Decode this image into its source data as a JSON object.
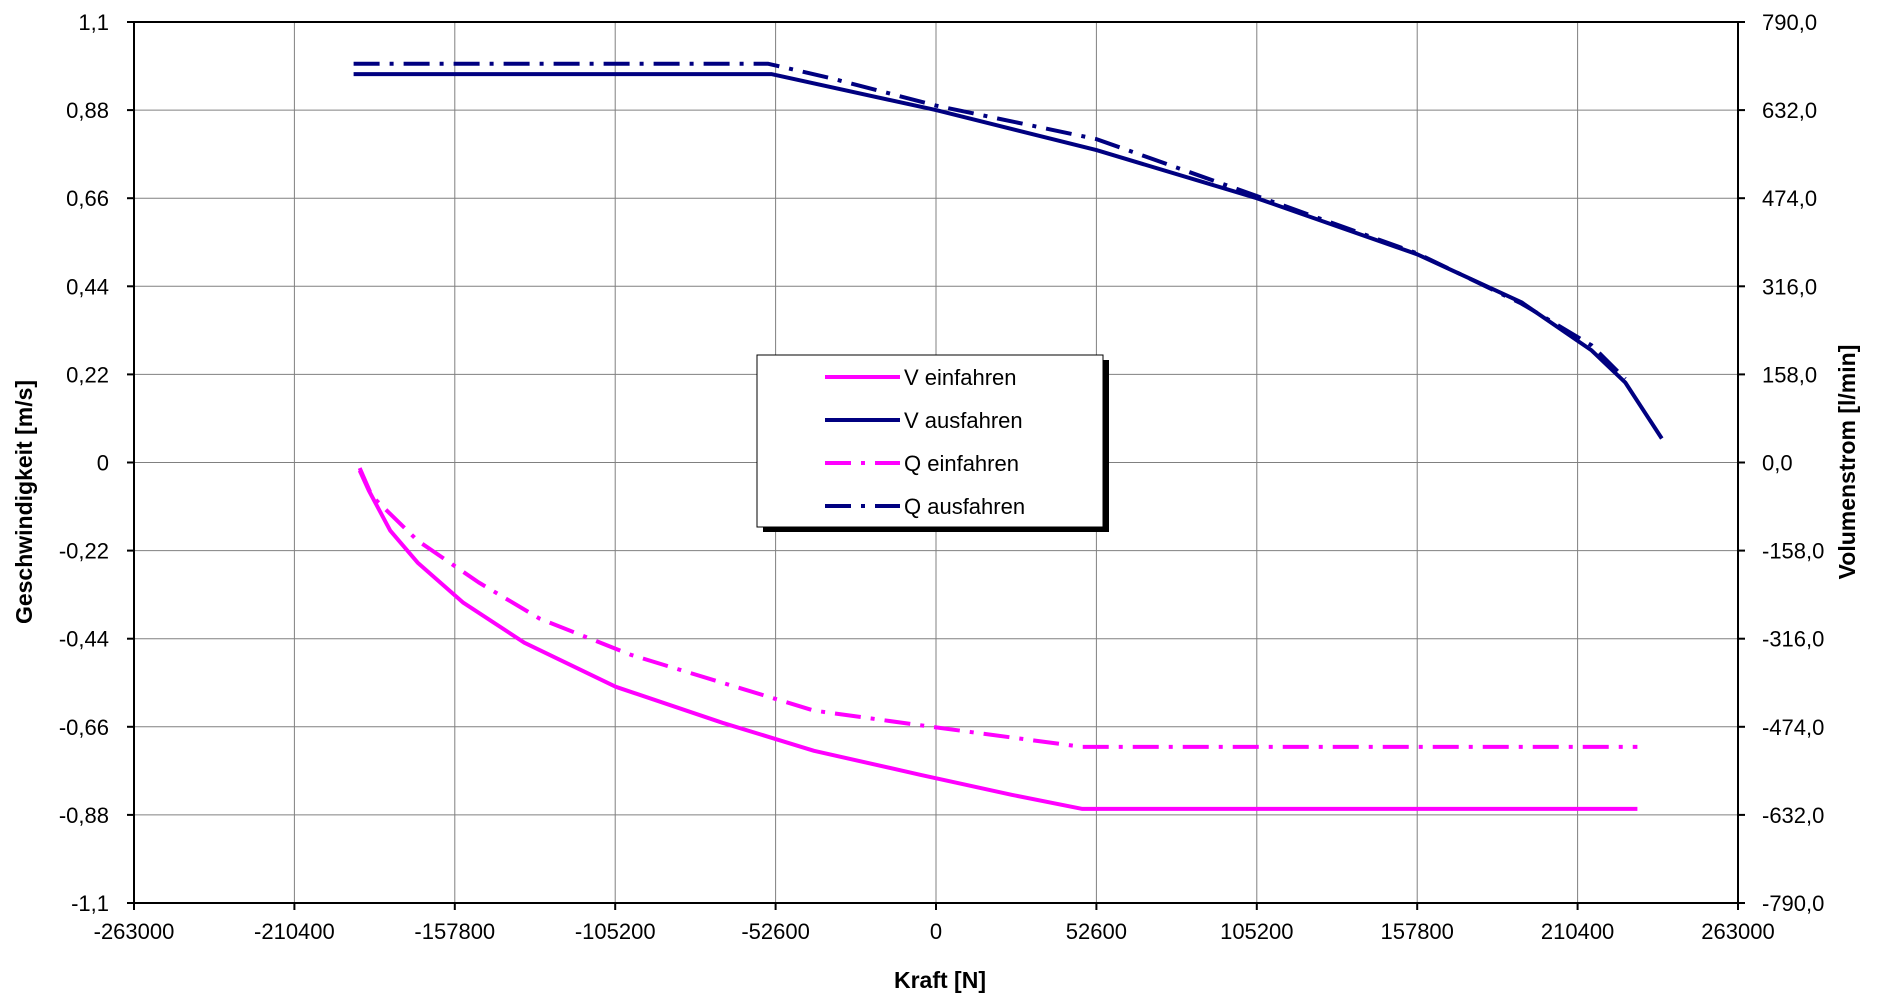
{
  "chart_data": {
    "type": "line",
    "title": "",
    "xlabel": "Kraft [N]",
    "ylabel": "Geschwindigkeit [m/s]",
    "y2label": "Volumenstrom [l/min]",
    "xlim": [
      -263000,
      263000
    ],
    "ylim": [
      -1.1,
      1.1
    ],
    "y2lim": [
      -790.0,
      790.0
    ],
    "x_ticks": [
      "-263000",
      "-210400",
      "-157800",
      "-105200",
      "-52600",
      "0",
      "52600",
      "105200",
      "157800",
      "210400",
      "263000"
    ],
    "y_ticks": [
      "1,1",
      "0,88",
      "0,66",
      "0,44",
      "0,22",
      "0",
      "-0,22",
      "-0,44",
      "-0,66",
      "-0,88",
      "-1,1"
    ],
    "y2_ticks": [
      "790,0",
      "632,0",
      "474,0",
      "316,0",
      "158,0",
      "0,0",
      "-158,0",
      "-316,0",
      "-474,0",
      "-632,0",
      "-790,0"
    ],
    "grid": true,
    "legend_position": "center",
    "series": [
      {
        "name": "V einfahren",
        "axis": "left",
        "color": "#ff00ff",
        "dash": "solid",
        "points": [
          [
            -189000,
            -0.02
          ],
          [
            -186000,
            -0.07
          ],
          [
            -179000,
            -0.17
          ],
          [
            -170000,
            -0.25
          ],
          [
            -155000,
            -0.35
          ],
          [
            -135000,
            -0.45
          ],
          [
            -105000,
            -0.56
          ],
          [
            -70000,
            -0.65
          ],
          [
            -40000,
            -0.72
          ],
          [
            -5000,
            -0.78
          ],
          [
            25000,
            -0.83
          ],
          [
            48000,
            -0.865
          ],
          [
            230000,
            -0.865
          ]
        ]
      },
      {
        "name": "V ausfahren",
        "axis": "left",
        "color": "#000080",
        "dash": "solid",
        "points": [
          [
            -191000,
            0.97
          ],
          [
            -54000,
            0.97
          ],
          [
            0,
            0.88
          ],
          [
            52600,
            0.78
          ],
          [
            105200,
            0.66
          ],
          [
            157800,
            0.52
          ],
          [
            192000,
            0.4
          ],
          [
            215000,
            0.28
          ],
          [
            226000,
            0.2
          ],
          [
            238000,
            0.06
          ]
        ]
      },
      {
        "name": "Q einfahren",
        "axis": "right",
        "color": "#ff00ff",
        "dash": "dashdot",
        "points": [
          [
            -189000,
            -10
          ],
          [
            -185000,
            -60
          ],
          [
            -170000,
            -140
          ],
          [
            -150000,
            -215
          ],
          [
            -130000,
            -280
          ],
          [
            -100000,
            -345
          ],
          [
            -70000,
            -395
          ],
          [
            -40000,
            -445
          ],
          [
            0,
            -475
          ],
          [
            48000,
            -510
          ],
          [
            230000,
            -510
          ]
        ]
      },
      {
        "name": "Q ausfahren",
        "axis": "right",
        "color": "#000080",
        "dash": "dashdot",
        "points": [
          [
            -191000,
            715
          ],
          [
            -55000,
            715
          ],
          [
            -35000,
            690
          ],
          [
            0,
            640
          ],
          [
            52600,
            580
          ],
          [
            105200,
            478
          ],
          [
            157800,
            375
          ],
          [
            192000,
            285
          ],
          [
            215000,
            210
          ],
          [
            226000,
            150
          ]
        ]
      }
    ]
  }
}
